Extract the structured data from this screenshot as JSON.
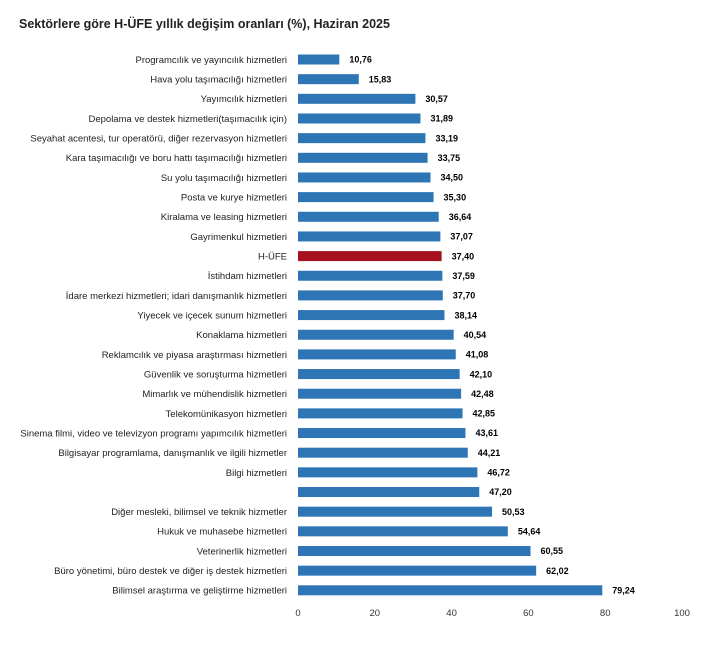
{
  "chart_data": {
    "type": "bar",
    "orientation": "horizontal",
    "title": "Sektörlere göre H-ÜFE yıllık değişim oranları (%), Haziran 2025",
    "xlabel": "",
    "ylabel": "",
    "xlim": [
      0,
      100
    ],
    "x_ticks": [
      "0",
      "20",
      "40",
      "60",
      "80",
      "100"
    ],
    "grid": false,
    "legend": "none",
    "colors": {
      "default": "#2e75b6",
      "highlight": "#a5121d"
    },
    "categories": [
      "Programcılık ve yayıncılık hizmetleri",
      "Hava yolu taşımacılığı hizmetleri",
      "Yayımcılık hizmetleri",
      "Depolama ve destek hizmetleri(taşımacılık için)",
      "Seyahat acentesi, tur operatörü, diğer rezervasyon hizmetleri",
      "Kara taşımacılığı ve boru hattı taşımacılığı hizmetleri",
      "Su yolu taşımacılığı hizmetleri",
      "Posta ve kurye hizmetleri",
      "Kiralama ve leasing hizmetleri",
      "Gayrimenkul hizmetleri",
      "H-ÜFE",
      "İstihdam hizmetleri",
      "İdare merkezi hizmetleri; idari danışmanlık hizmetleri",
      "Yiyecek ve içecek sunum hizmetleri",
      "Konaklama hizmetleri",
      "Reklamcılık ve piyasa araştırması hizmetleri",
      "Güvenlik ve soruşturma hizmetleri",
      "Mimarlık ve mühendislik hizmetleri",
      "Telekomünikasyon hizmetleri",
      "Sinema filmi, video ve televizyon programı yapımcılık hizmetleri",
      "Bilgisayar programlama, danışmanlık ve ilgili hizmetler",
      "Bilgi hizmetleri",
      "",
      "Diğer mesleki, bilimsel ve teknik hizmetler",
      "Hukuk ve muhasebe hizmetleri",
      "Veterinerlik hizmetleri",
      "Büro yönetimi, büro destek ve diğer iş destek hizmetleri",
      "Bilimsel araştırma ve geliştirme hizmetleri"
    ],
    "values": [
      10.76,
      15.83,
      30.57,
      31.89,
      33.19,
      33.75,
      34.5,
      35.3,
      36.64,
      37.07,
      37.4,
      37.59,
      37.7,
      38.14,
      40.54,
      41.08,
      42.1,
      42.48,
      42.85,
      43.61,
      44.21,
      46.72,
      47.2,
      50.53,
      54.64,
      60.55,
      62.02,
      79.24
    ],
    "value_labels": [
      "10,76",
      "15,83",
      "30,57",
      "31,89",
      "33,19",
      "33,75",
      "34,50",
      "35,30",
      "36,64",
      "37,07",
      "37,40",
      "37,59",
      "37,70",
      "38,14",
      "40,54",
      "41,08",
      "42,10",
      "42,48",
      "42,85",
      "43,61",
      "44,21",
      "46,72",
      "47,20",
      "50,53",
      "54,64",
      "60,55",
      "62,02",
      "79,24"
    ],
    "highlight_index": 10
  }
}
